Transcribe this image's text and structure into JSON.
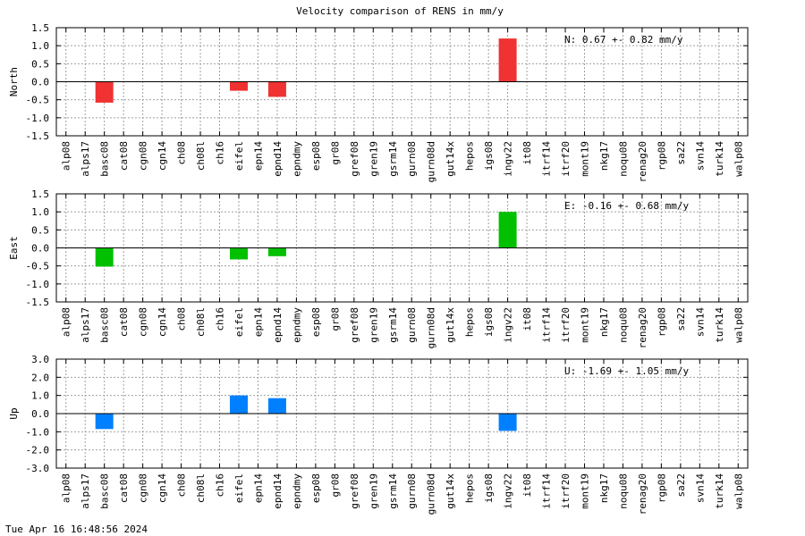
{
  "chart_data": {
    "type": "bar",
    "title": "Velocity comparison of RENS in mm/y",
    "categories": [
      "alp08",
      "alps17",
      "basc08",
      "cat08",
      "cgn08",
      "cgn14",
      "ch08",
      "ch08l",
      "ch16",
      "eifel",
      "epn14",
      "epnd14",
      "epndmy",
      "esp08",
      "gr08",
      "gref08",
      "gren19",
      "gsrm14",
      "gurn08",
      "gurn08d",
      "gut14x",
      "hepos",
      "igs08",
      "ingv22",
      "it08",
      "itrf14",
      "itrf20",
      "mont19",
      "nkg17",
      "noqu08",
      "renag20",
      "rgp08",
      "sa22",
      "svn14",
      "turk14",
      "walp08"
    ],
    "panels": [
      {
        "ylabel": "North",
        "color": "#f03232",
        "ylim": [
          -1.5,
          1.5
        ],
        "yticks": [
          "1.5",
          "1.0",
          "0.5",
          "0.0",
          "-0.5",
          "-1.0",
          "-1.5"
        ],
        "summary": "N:   0.67 +-  0.82 mm/y",
        "values": [
          0,
          0,
          -0.58,
          0,
          0,
          0,
          0,
          0,
          0,
          -0.25,
          0,
          -0.42,
          0,
          0,
          0,
          0,
          0,
          0,
          0,
          0,
          0,
          0,
          0,
          1.2,
          0,
          0,
          0,
          0,
          0,
          0,
          0,
          0,
          0,
          0,
          0,
          0
        ]
      },
      {
        "ylabel": "East",
        "color": "#00c000",
        "ylim": [
          -1.5,
          1.5
        ],
        "yticks": [
          "1.5",
          "1.0",
          "0.5",
          "0.0",
          "-0.5",
          "-1.0",
          "-1.5"
        ],
        "summary": "E:  -0.16 +-  0.68 mm/y",
        "values": [
          0,
          0,
          -0.52,
          0,
          0,
          0,
          0,
          0,
          0,
          -0.32,
          0,
          -0.23,
          0,
          0,
          0,
          0,
          0,
          0,
          0,
          0,
          0,
          0,
          0,
          1.0,
          0,
          0,
          0,
          0,
          0,
          0,
          0,
          0,
          0,
          0,
          0,
          0
        ]
      },
      {
        "ylabel": "Up",
        "color": "#0080ff",
        "ylim": [
          -3.0,
          3.0
        ],
        "yticks": [
          "3.0",
          "2.0",
          "1.0",
          "0.0",
          "-1.0",
          "-2.0",
          "-3.0"
        ],
        "summary": "U:  -1.69 +-  1.05 mm/y",
        "values": [
          0,
          0,
          -0.85,
          0,
          0,
          0,
          0,
          0,
          0,
          1.0,
          0,
          0.85,
          0,
          0,
          0,
          0,
          0,
          0,
          0,
          0,
          0,
          0,
          0,
          -0.95,
          0,
          0,
          0,
          0,
          0,
          0,
          0,
          0,
          0,
          0,
          0,
          0
        ]
      }
    ],
    "grid": true
  },
  "footer": "Tue Apr 16 16:48:56 2024"
}
